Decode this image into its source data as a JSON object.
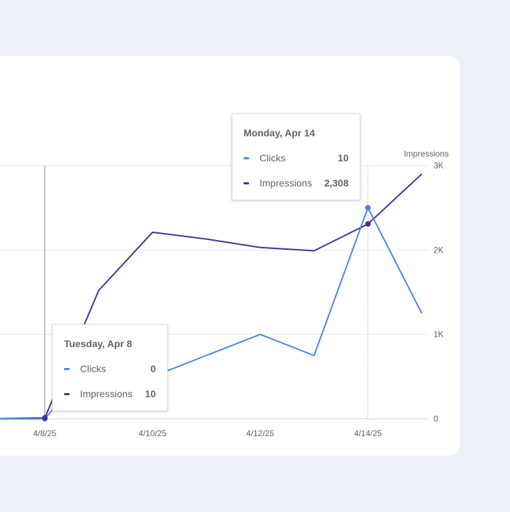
{
  "colors": {
    "clicks": "#4285f4",
    "impressions": "#4a2b9b",
    "grid": "#e6e6e6",
    "axis_text": "#5f6368",
    "page_bg": "#edf1f8",
    "card_bg": "#ffffff"
  },
  "chart_data": {
    "type": "line",
    "x": [
      "4/7/25",
      "4/8/25",
      "4/9/25",
      "4/10/25",
      "4/11/25",
      "4/12/25",
      "4/13/25",
      "4/14/25",
      "4/15/25"
    ],
    "x_tick_labels": [
      "4/8/25",
      "4/10/25",
      "4/12/25",
      "4/14/25"
    ],
    "y_right_label": "Impressions",
    "y_right_ticks": [
      "0",
      "1K",
      "2K",
      "3K"
    ],
    "y_right_lim": [
      0,
      3000
    ],
    "grid": true,
    "series": [
      {
        "name": "Clicks",
        "axis": "left",
        "ylim": [
          0,
          12
        ],
        "values": [
          0,
          0,
          3,
          2,
          3,
          4,
          3,
          10,
          5
        ]
      },
      {
        "name": "Impressions",
        "axis": "right",
        "values": [
          0,
          10,
          1520,
          2210,
          2130,
          2030,
          1990,
          2308,
          2900
        ]
      }
    ],
    "hover_marker_x": "4/14/25"
  },
  "tooltips": [
    {
      "title": "Monday, Apr 14",
      "rows": [
        {
          "label": "Clicks",
          "value": "10"
        },
        {
          "label": "Impressions",
          "value": "2,308"
        }
      ]
    },
    {
      "title": "Tuesday, Apr 8",
      "rows": [
        {
          "label": "Clicks",
          "value": "0"
        },
        {
          "label": "Impressions",
          "value": "10"
        }
      ]
    }
  ]
}
